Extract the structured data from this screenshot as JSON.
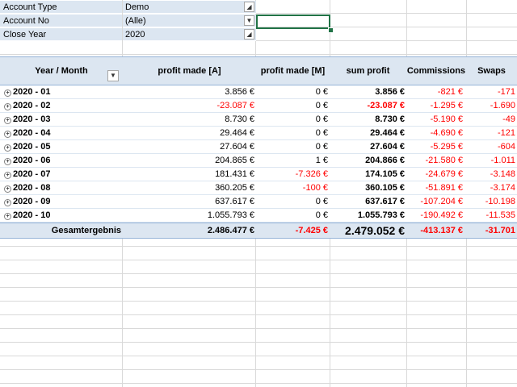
{
  "filters": [
    {
      "label": "Account Type",
      "value": "Demo",
      "button": "filter-icon"
    },
    {
      "label": "Account No",
      "value": "(Alle)",
      "button": "dropdown-icon"
    },
    {
      "label": "Close Year",
      "value": "2020",
      "button": "filter-icon"
    }
  ],
  "pivot": {
    "headers": {
      "row_label": "Year / Month",
      "col1": "profit made [A]",
      "col2": "profit made [M]",
      "col3": "sum profit",
      "col4": "Commissions",
      "col5": "Swaps"
    },
    "rows": [
      {
        "label": "2020 - 01",
        "c1": "3.856 €",
        "c2": "0 €",
        "c3": "3.856 €",
        "c4": "-821 €",
        "c5": "-171",
        "neg": [
          false,
          false,
          false,
          true,
          true
        ]
      },
      {
        "label": "2020 - 02",
        "c1": "-23.087 €",
        "c2": "0 €",
        "c3": "-23.087 €",
        "c4": "-1.295 €",
        "c5": "-1.690",
        "neg": [
          true,
          false,
          true,
          true,
          true
        ]
      },
      {
        "label": "2020 - 03",
        "c1": "8.730 €",
        "c2": "0 €",
        "c3": "8.730 €",
        "c4": "-5.190 €",
        "c5": "-49",
        "neg": [
          false,
          false,
          false,
          true,
          true
        ]
      },
      {
        "label": "2020 - 04",
        "c1": "29.464 €",
        "c2": "0 €",
        "c3": "29.464 €",
        "c4": "-4.690 €",
        "c5": "-121",
        "neg": [
          false,
          false,
          false,
          true,
          true
        ]
      },
      {
        "label": "2020 - 05",
        "c1": "27.604 €",
        "c2": "0 €",
        "c3": "27.604 €",
        "c4": "-5.295 €",
        "c5": "-604",
        "neg": [
          false,
          false,
          false,
          true,
          true
        ]
      },
      {
        "label": "2020 - 06",
        "c1": "204.865 €",
        "c2": "1 €",
        "c3": "204.866 €",
        "c4": "-21.580 €",
        "c5": "-1.011",
        "neg": [
          false,
          false,
          false,
          true,
          true
        ]
      },
      {
        "label": "2020 - 07",
        "c1": "181.431 €",
        "c2": "-7.326 €",
        "c3": "174.105 €",
        "c4": "-24.679 €",
        "c5": "-3.148",
        "neg": [
          false,
          true,
          false,
          true,
          true
        ]
      },
      {
        "label": "2020 - 08",
        "c1": "360.205 €",
        "c2": "-100 €",
        "c3": "360.105 €",
        "c4": "-51.891 €",
        "c5": "-3.174",
        "neg": [
          false,
          true,
          false,
          true,
          true
        ]
      },
      {
        "label": "2020 - 09",
        "c1": "637.617 €",
        "c2": "0 €",
        "c3": "637.617 €",
        "c4": "-107.204 €",
        "c5": "-10.198",
        "neg": [
          false,
          false,
          false,
          true,
          true
        ]
      },
      {
        "label": "2020 - 10",
        "c1": "1.055.793 €",
        "c2": "0 €",
        "c3": "1.055.793 €",
        "c4": "-190.492 €",
        "c5": "-11.535",
        "neg": [
          false,
          false,
          false,
          true,
          true
        ]
      }
    ],
    "total": {
      "label": "Gesamtergebnis",
      "c1": "2.486.477 €",
      "c2": "-7.425 €",
      "c3": "2.479.052 €",
      "c4": "-413.137 €",
      "c5": "-31.701"
    }
  }
}
